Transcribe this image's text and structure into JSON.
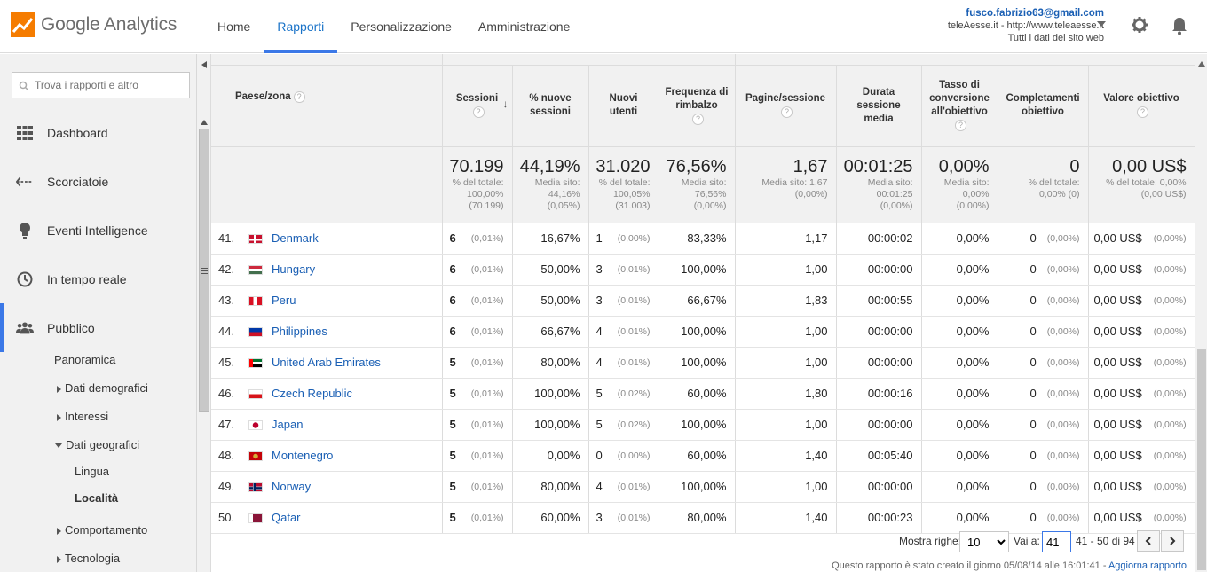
{
  "header": {
    "logo_text": "Google Analytics",
    "nav": [
      {
        "label": "Home",
        "active": false
      },
      {
        "label": "Rapporti",
        "active": true
      },
      {
        "label": "Personalizzazione",
        "active": false
      },
      {
        "label": "Amministrazione",
        "active": false
      }
    ],
    "account": {
      "email": "fusco.fabrizio63@gmail.com",
      "property": "teleAesse.it - http://www.teleaesse.it",
      "view": "Tutti i dati del sito web"
    },
    "icons": [
      "gear-icon",
      "bell-icon"
    ],
    "accent_color": "#3b78e7"
  },
  "sidebar": {
    "search_placeholder": "Trova i rapporti e altro",
    "items": [
      {
        "label": "Dashboard",
        "icon": "grid-icon"
      },
      {
        "label": "Scorciatoie",
        "icon": "shortcut-icon"
      },
      {
        "label": "Eventi Intelligence",
        "icon": "lightbulb-icon"
      },
      {
        "label": "In tempo reale",
        "icon": "clock-icon"
      },
      {
        "label": "Pubblico",
        "icon": "people-icon"
      }
    ],
    "sub": {
      "panoramica": "Panoramica",
      "demografici": "Dati demografici",
      "interessi": "Interessi",
      "geografici": "Dati geografici",
      "lingua": "Lingua",
      "localita": "Località",
      "comportamento": "Comportamento",
      "tecnologia": "Tecnologia"
    }
  },
  "table": {
    "headers": {
      "paese": "Paese/zona",
      "sessioni": "Sessioni",
      "nuove_sessioni": "% nuove sessioni",
      "nuovi_utenti": "Nuovi utenti",
      "rimbalzo": "Frequenza di rimbalzo",
      "pagine": "Pagine/sessione",
      "durata": "Durata sessione media",
      "conversione": "Tasso di conversione all'obiettivo",
      "completamenti": "Completamenti obiettivo",
      "valore": "Valore obiettivo"
    },
    "summary": {
      "sessioni": {
        "big": "70.199",
        "s1": "% del totale:",
        "s2": "100,00%",
        "s3": "(70.199)"
      },
      "nuove_sessioni": {
        "big": "44,19%",
        "s1": "Media sito:",
        "s2": "44,16%",
        "s3": "(0,05%)"
      },
      "nuovi_utenti": {
        "big": "31.020",
        "s1": "% del totale:",
        "s2": "100,05%",
        "s3": "(31.003)"
      },
      "rimbalzo": {
        "big": "76,56%",
        "s1": "Media sito:",
        "s2": "76,56%",
        "s3": "(0,00%)"
      },
      "pagine": {
        "big": "1,67",
        "s1": "Media sito: 1,67",
        "s2": "(0,00%)",
        "s3": ""
      },
      "durata": {
        "big": "00:01:25",
        "s1": "Media sito:",
        "s2": "00:01:25",
        "s3": "(0,00%)"
      },
      "conversione": {
        "big": "0,00%",
        "s1": "Media sito:",
        "s2": "0,00%",
        "s3": "(0,00%)"
      },
      "completamenti": {
        "big": "0",
        "s1": "% del totale:",
        "s2": "0,00% (0)",
        "s3": ""
      },
      "valore": {
        "big": "0,00 US$",
        "s1": "% del totale: 0,00%",
        "s2": "(0,00 US$)",
        "s3": ""
      }
    },
    "rows": [
      {
        "n": "41.",
        "country": "Denmark",
        "flag": "dk",
        "sess": "6",
        "sess_pct": "(0,01%)",
        "new_sess": "16,67%",
        "new_users": "1",
        "new_users_pct": "(0,00%)",
        "bounce": "83,33%",
        "pages": "1,17",
        "dur": "00:00:02",
        "conv": "0,00%",
        "compl": "0",
        "compl_pct": "(0,00%)",
        "val": "0,00 US$",
        "val_pct": "(0,00%)"
      },
      {
        "n": "42.",
        "country": "Hungary",
        "flag": "hu",
        "sess": "6",
        "sess_pct": "(0,01%)",
        "new_sess": "50,00%",
        "new_users": "3",
        "new_users_pct": "(0,01%)",
        "bounce": "100,00%",
        "pages": "1,00",
        "dur": "00:00:00",
        "conv": "0,00%",
        "compl": "0",
        "compl_pct": "(0,00%)",
        "val": "0,00 US$",
        "val_pct": "(0,00%)"
      },
      {
        "n": "43.",
        "country": "Peru",
        "flag": "pe",
        "sess": "6",
        "sess_pct": "(0,01%)",
        "new_sess": "50,00%",
        "new_users": "3",
        "new_users_pct": "(0,01%)",
        "bounce": "66,67%",
        "pages": "1,83",
        "dur": "00:00:55",
        "conv": "0,00%",
        "compl": "0",
        "compl_pct": "(0,00%)",
        "val": "0,00 US$",
        "val_pct": "(0,00%)"
      },
      {
        "n": "44.",
        "country": "Philippines",
        "flag": "ph",
        "sess": "6",
        "sess_pct": "(0,01%)",
        "new_sess": "66,67%",
        "new_users": "4",
        "new_users_pct": "(0,01%)",
        "bounce": "100,00%",
        "pages": "1,00",
        "dur": "00:00:00",
        "conv": "0,00%",
        "compl": "0",
        "compl_pct": "(0,00%)",
        "val": "0,00 US$",
        "val_pct": "(0,00%)"
      },
      {
        "n": "45.",
        "country": "United Arab Emirates",
        "flag": "ae",
        "sess": "5",
        "sess_pct": "(0,01%)",
        "new_sess": "80,00%",
        "new_users": "4",
        "new_users_pct": "(0,01%)",
        "bounce": "100,00%",
        "pages": "1,00",
        "dur": "00:00:00",
        "conv": "0,00%",
        "compl": "0",
        "compl_pct": "(0,00%)",
        "val": "0,00 US$",
        "val_pct": "(0,00%)"
      },
      {
        "n": "46.",
        "country": "Czech Republic",
        "flag": "cz",
        "sess": "5",
        "sess_pct": "(0,01%)",
        "new_sess": "100,00%",
        "new_users": "5",
        "new_users_pct": "(0,02%)",
        "bounce": "60,00%",
        "pages": "1,80",
        "dur": "00:00:16",
        "conv": "0,00%",
        "compl": "0",
        "compl_pct": "(0,00%)",
        "val": "0,00 US$",
        "val_pct": "(0,00%)"
      },
      {
        "n": "47.",
        "country": "Japan",
        "flag": "jp",
        "sess": "5",
        "sess_pct": "(0,01%)",
        "new_sess": "100,00%",
        "new_users": "5",
        "new_users_pct": "(0,02%)",
        "bounce": "100,00%",
        "pages": "1,00",
        "dur": "00:00:00",
        "conv": "0,00%",
        "compl": "0",
        "compl_pct": "(0,00%)",
        "val": "0,00 US$",
        "val_pct": "(0,00%)"
      },
      {
        "n": "48.",
        "country": "Montenegro",
        "flag": "me",
        "sess": "5",
        "sess_pct": "(0,01%)",
        "new_sess": "0,00%",
        "new_users": "0",
        "new_users_pct": "(0,00%)",
        "bounce": "60,00%",
        "pages": "1,40",
        "dur": "00:05:40",
        "conv": "0,00%",
        "compl": "0",
        "compl_pct": "(0,00%)",
        "val": "0,00 US$",
        "val_pct": "(0,00%)"
      },
      {
        "n": "49.",
        "country": "Norway",
        "flag": "no",
        "sess": "5",
        "sess_pct": "(0,01%)",
        "new_sess": "80,00%",
        "new_users": "4",
        "new_users_pct": "(0,01%)",
        "bounce": "100,00%",
        "pages": "1,00",
        "dur": "00:00:00",
        "conv": "0,00%",
        "compl": "0",
        "compl_pct": "(0,00%)",
        "val": "0,00 US$",
        "val_pct": "(0,00%)"
      },
      {
        "n": "50.",
        "country": "Qatar",
        "flag": "qa",
        "sess": "5",
        "sess_pct": "(0,01%)",
        "new_sess": "60,00%",
        "new_users": "3",
        "new_users_pct": "(0,01%)",
        "bounce": "80,00%",
        "pages": "1,40",
        "dur": "00:00:23",
        "conv": "0,00%",
        "compl": "0",
        "compl_pct": "(0,00%)",
        "val": "0,00 US$",
        "val_pct": "(0,00%)"
      }
    ]
  },
  "pager": {
    "show_rows_label": "Mostra righe:",
    "show_rows_value": "10",
    "goto_label": "Vai a:",
    "goto_value": "41",
    "range": "41 - 50 di 94"
  },
  "footer": {
    "note": "Questo rapporto è stato creato il giorno 05/08/14 alle 16:01:41 - ",
    "link": "Aggiorna rapporto"
  }
}
